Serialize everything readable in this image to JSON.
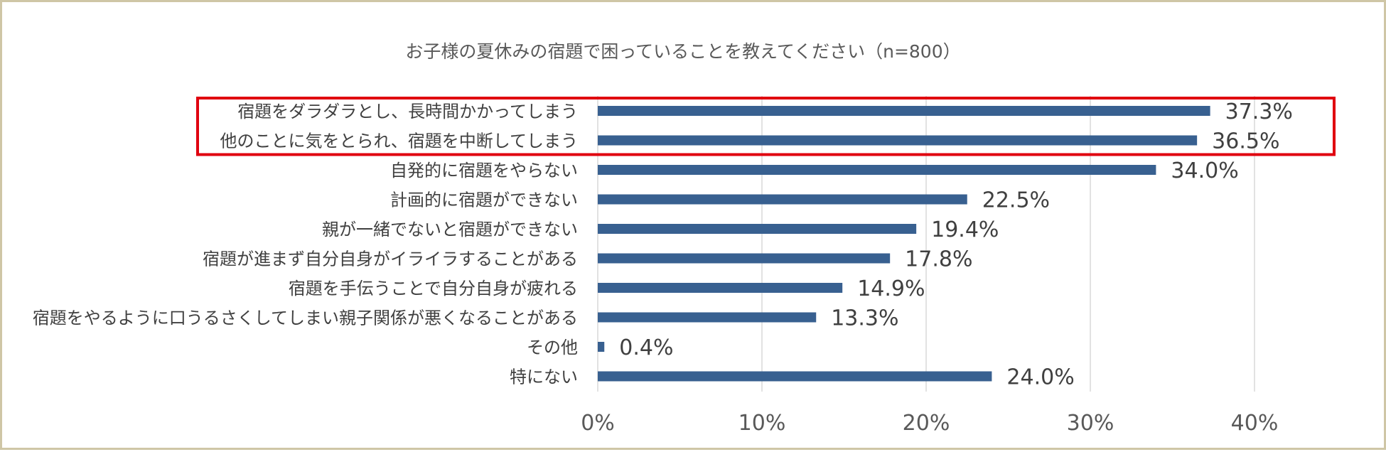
{
  "chart_data": {
    "type": "bar",
    "orientation": "horizontal",
    "title": "お子様の夏休みの宿題で困っていることを教えてください（n=800）",
    "categories": [
      "宿題をダラダラとし、長時間かかってしまう",
      "他のことに気をとられ、宿題を中断してしまう",
      "自発的に宿題をやらない",
      "計画的に宿題ができない",
      "親が一緒でないと宿題ができない",
      "宿題が進まず自分自身がイライラすることがある",
      "宿題を手伝うことで自分自身が疲れる",
      "宿題をやるように口うるさくしてしまい親子関係が悪くなることがある",
      "その他",
      "特にない"
    ],
    "values": [
      37.3,
      36.5,
      34.0,
      22.5,
      19.4,
      17.8,
      14.9,
      13.3,
      0.4,
      24.0
    ],
    "value_labels": [
      "37.3%",
      "36.5%",
      "34.0%",
      "22.5%",
      "19.4%",
      "17.8%",
      "14.9%",
      "13.3%",
      "0.4%",
      "24.0%"
    ],
    "xlim": [
      0,
      40
    ],
    "x_ticks": [
      0,
      10,
      20,
      30,
      40
    ],
    "x_tick_labels": [
      "0%",
      "10%",
      "20%",
      "30%",
      "40%"
    ],
    "grid": true,
    "highlight_categories": [
      0,
      1
    ],
    "colors": {
      "bar": "#386090",
      "grid": "#d9d9d9",
      "highlight": "#e0000f",
      "border": "#cfc6a6"
    }
  }
}
